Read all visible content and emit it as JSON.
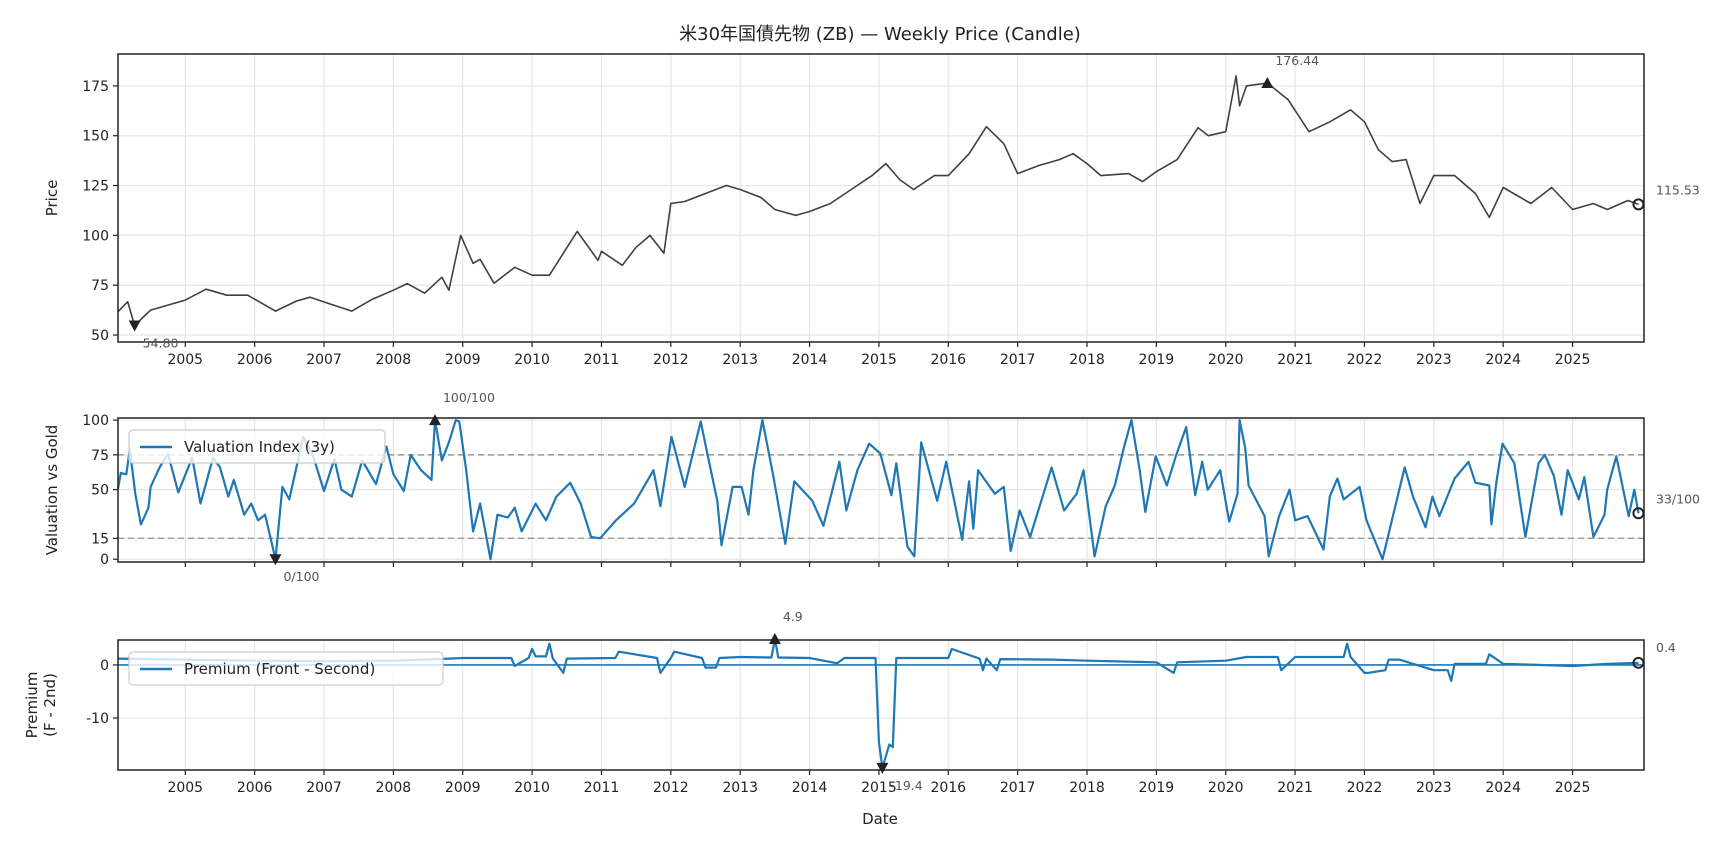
{
  "title": "米30年国債先物 (ZB) — Weekly Price (Candle)",
  "colors": {
    "price": "#404040",
    "series": "#1f77b4",
    "grid": "#e6e6e6",
    "threshold": "#999999",
    "marker": "#222222"
  },
  "chart_data": [
    {
      "type": "line",
      "style": "candle (weekly)",
      "ylabel": "Price",
      "xlim": [
        2004.03,
        2026.03
      ],
      "ylim": [
        46.5,
        191
      ],
      "yticks": [
        "50",
        "75",
        "100",
        "125",
        "150",
        "175"
      ],
      "xticks": [
        "2005",
        "2006",
        "2007",
        "2008",
        "2009",
        "2010",
        "2011",
        "2012",
        "2013",
        "2014",
        "2015",
        "2016",
        "2017",
        "2018",
        "2019",
        "2020",
        "2021",
        "2022",
        "2023",
        "2024",
        "2025"
      ],
      "grid": true,
      "x": [
        2004.03,
        2004.17,
        2004.27,
        2004.5,
        2005.0,
        2005.3,
        2005.6,
        2005.9,
        2006.3,
        2006.6,
        2006.8,
        2007.05,
        2007.4,
        2007.7,
        2008.0,
        2008.2,
        2008.45,
        2008.7,
        2008.8,
        2008.97,
        2009.15,
        2009.25,
        2009.45,
        2009.75,
        2010.0,
        2010.25,
        2010.65,
        2010.95,
        2011.0,
        2011.3,
        2011.5,
        2011.7,
        2011.9,
        2012.0,
        2012.2,
        2012.5,
        2012.8,
        2013.0,
        2013.3,
        2013.5,
        2013.8,
        2014.0,
        2014.3,
        2014.6,
        2014.9,
        2015.1,
        2015.3,
        2015.5,
        2015.8,
        2016.0,
        2016.3,
        2016.55,
        2016.8,
        2017.0,
        2017.3,
        2017.6,
        2017.8,
        2018.0,
        2018.2,
        2018.6,
        2018.8,
        2019.0,
        2019.3,
        2019.6,
        2019.75,
        2020.0,
        2020.15,
        2020.2,
        2020.3,
        2020.6,
        2020.9,
        2021.2,
        2021.5,
        2021.8,
        2022.0,
        2022.2,
        2022.4,
        2022.6,
        2022.8,
        2023.0,
        2023.3,
        2023.6,
        2023.8,
        2024.0,
        2024.4,
        2024.7,
        2025.0,
        2025.3,
        2025.5,
        2025.8,
        2025.95
      ],
      "y": [
        61.7,
        66.7,
        54.8,
        62.5,
        67.5,
        73,
        70,
        70,
        62,
        67,
        69,
        66,
        62,
        68,
        72.5,
        75.8,
        71,
        79,
        72.5,
        100,
        86,
        88,
        76,
        84,
        80,
        80,
        102,
        87.5,
        92,
        85,
        94,
        100,
        91,
        116,
        117,
        121,
        125,
        123,
        119,
        113,
        110,
        112,
        116,
        123,
        130,
        136,
        128,
        123,
        130,
        130,
        141,
        154.5,
        146,
        131,
        135,
        138,
        141,
        136,
        130,
        131,
        127,
        132,
        138,
        154,
        150,
        152,
        180,
        165,
        175,
        176.44,
        168,
        152,
        157,
        163,
        157,
        143,
        137,
        138,
        116,
        130,
        130,
        121,
        109,
        124,
        116,
        124,
        113,
        116,
        113,
        117.5,
        115.53
      ],
      "annotations": {
        "max_label": "176.44",
        "max_x": 2020.6,
        "max_y": 176.44,
        "min_label": "54.80",
        "min_x": 2004.27,
        "min_y": 54.8,
        "last_label": "115.53"
      }
    },
    {
      "type": "line",
      "ylabel": "Valuation vs Gold",
      "xlim": [
        2004.03,
        2026.03
      ],
      "ylim": [
        -2,
        101.5
      ],
      "yticks": [
        "0",
        "15",
        "50",
        "75",
        "100"
      ],
      "thresholds": [
        75,
        15
      ],
      "grid": true,
      "legend": {
        "label": "Valuation Index (3y)",
        "placement": "upper-left"
      },
      "x": [
        2004.03,
        2004.07,
        2004.15,
        2004.2,
        2004.28,
        2004.36,
        2004.47,
        2004.5,
        2004.63,
        2004.75,
        2004.9,
        2005.1,
        2005.22,
        2005.4,
        2005.5,
        2005.62,
        2005.7,
        2005.85,
        2005.95,
        2006.05,
        2006.15,
        2006.3,
        2006.4,
        2006.5,
        2006.7,
        2006.85,
        2007.0,
        2007.15,
        2007.25,
        2007.4,
        2007.55,
        2007.75,
        2007.9,
        2008.0,
        2008.15,
        2008.25,
        2008.4,
        2008.55,
        2008.6,
        2008.7,
        2008.8,
        2008.9,
        2008.95,
        2009.05,
        2009.15,
        2009.25,
        2009.4,
        2009.5,
        2009.65,
        2009.75,
        2009.85,
        2010.05,
        2010.2,
        2010.35,
        2010.55,
        2010.7,
        2010.85,
        2010.98,
        2011.21,
        2011.47,
        2011.75,
        2011.85,
        2012.01,
        2012.2,
        2012.43,
        2012.53,
        2012.67,
        2012.73,
        2012.89,
        2013.02,
        2013.12,
        2013.19,
        2013.32,
        2013.48,
        2013.65,
        2013.78,
        2014.04,
        2014.2,
        2014.43,
        2014.53,
        2014.69,
        2014.86,
        2015.02,
        2015.18,
        2015.25,
        2015.41,
        2015.51,
        2015.61,
        2015.84,
        2015.97,
        2016.2,
        2016.3,
        2016.36,
        2016.43,
        2016.67,
        2016.8,
        2016.9,
        2017.03,
        2017.18,
        2017.49,
        2017.67,
        2017.85,
        2017.95,
        2018.11,
        2018.27,
        2018.4,
        2018.53,
        2018.64,
        2018.76,
        2018.84,
        2018.99,
        2019.15,
        2019.28,
        2019.43,
        2019.56,
        2019.66,
        2019.74,
        2019.92,
        2020.05,
        2020.17,
        2020.2,
        2020.28,
        2020.33,
        2020.56,
        2020.62,
        2020.77,
        2020.92,
        2021.0,
        2021.18,
        2021.41,
        2021.5,
        2021.61,
        2021.7,
        2021.93,
        2022.03,
        2022.26,
        2022.42,
        2022.58,
        2022.7,
        2022.88,
        2022.98,
        2023.08,
        2023.3,
        2023.5,
        2023.6,
        2023.8,
        2023.83,
        2023.9,
        2023.99,
        2024.16,
        2024.32,
        2024.51,
        2024.6,
        2024.73,
        2024.84,
        2024.93,
        2025.09,
        2025.17,
        2025.3,
        2025.46,
        2025.5,
        2025.63,
        2025.81,
        2025.89,
        2025.95
      ],
      "y": [
        50.6,
        62,
        61,
        79,
        47,
        25,
        37,
        52,
        66,
        76,
        48,
        73,
        40,
        73,
        66,
        45,
        57,
        32,
        40,
        28,
        32,
        0,
        52,
        43,
        88,
        73,
        49,
        72,
        50,
        45,
        71,
        54,
        81,
        61,
        49,
        75,
        64,
        57,
        100,
        71,
        84,
        100,
        99,
        64,
        20,
        40,
        0,
        32,
        30,
        37,
        20,
        40,
        28,
        45,
        55,
        40,
        16,
        15,
        28,
        40,
        64,
        38,
        88,
        52,
        99,
        75,
        42,
        10,
        52,
        52,
        32,
        64,
        100,
        59,
        11,
        56,
        42,
        24,
        70,
        35,
        64,
        83,
        76,
        46,
        69,
        9,
        2,
        84,
        42,
        70,
        14,
        56,
        22,
        64,
        47,
        52,
        6,
        35,
        16,
        66,
        35,
        47,
        64,
        2,
        38,
        53,
        80,
        100,
        64,
        34,
        74,
        53,
        74,
        95,
        46,
        70,
        50,
        64,
        27,
        47,
        100,
        80,
        53,
        31,
        2,
        31,
        50,
        28,
        31,
        7,
        45,
        58,
        43,
        52,
        28,
        0,
        33,
        66,
        45,
        23,
        45,
        31,
        58,
        70,
        55,
        53,
        25,
        55,
        83,
        69,
        16,
        69,
        75,
        60,
        32,
        64,
        43,
        59,
        16,
        32,
        50,
        74,
        31,
        50,
        33
      ],
      "annotations": {
        "max_label": "100/100",
        "max_x": 2008.6,
        "max_y": 100,
        "min_label": "0/100",
        "min_x": 2006.3,
        "min_y": 0,
        "last_label": "33/100"
      }
    },
    {
      "type": "line",
      "ylabel": "Premium\n(F - 2nd)",
      "ylabel_lines": [
        "Premium",
        "(F - 2nd)"
      ],
      "xlabel": "Date",
      "xlim": [
        2004.03,
        2026.03
      ],
      "ylim": [
        -19.8,
        4.7
      ],
      "yticks": [
        "0",
        "-10"
      ],
      "zero_line": true,
      "grid": true,
      "legend": {
        "label": "Premium (Front - Second)",
        "placement": "upper-left"
      },
      "xticks": [
        "2005",
        "2006",
        "2007",
        "2008",
        "2009",
        "2010",
        "2011",
        "2012",
        "2013",
        "2014",
        "2015",
        "2016",
        "2017",
        "2018",
        "2019",
        "2020",
        "2021",
        "2022",
        "2023",
        "2024",
        "2025"
      ],
      "x": [
        2004.03,
        2005.0,
        2006.0,
        2007.0,
        2008.0,
        2008.8,
        2009.0,
        2009.7,
        2009.75,
        2009.95,
        2010.0,
        2010.05,
        2010.2,
        2010.25,
        2010.3,
        2010.45,
        2010.5,
        2011.2,
        2011.25,
        2011.8,
        2011.85,
        2012.0,
        2012.05,
        2012.45,
        2012.5,
        2012.65,
        2012.7,
        2013.0,
        2013.45,
        2013.5,
        2013.55,
        2014.0,
        2014.4,
        2014.5,
        2014.95,
        2015.0,
        2015.05,
        2015.15,
        2015.2,
        2015.25,
        2016.0,
        2016.05,
        2016.45,
        2016.5,
        2016.55,
        2016.7,
        2016.75,
        2017.5,
        2018.0,
        2019.0,
        2019.25,
        2019.3,
        2020.0,
        2020.3,
        2020.75,
        2020.8,
        2021.0,
        2021.7,
        2021.75,
        2021.8,
        2022.0,
        2022.05,
        2022.3,
        2022.35,
        2022.5,
        2023.0,
        2023.2,
        2023.25,
        2023.3,
        2023.75,
        2023.8,
        2024.0,
        2024.5,
        2025.0,
        2025.5,
        2025.95
      ],
      "y": [
        1.2,
        1.0,
        0.8,
        0.7,
        0.8,
        1.2,
        1.3,
        1.3,
        -0.2,
        1.3,
        3.0,
        1.6,
        1.6,
        4.0,
        1.2,
        -1.5,
        1.2,
        1.3,
        2.5,
        1.3,
        -1.5,
        1.3,
        2.5,
        1.3,
        -0.5,
        -0.5,
        1.3,
        1.5,
        1.4,
        4.9,
        1.4,
        1.3,
        0.3,
        1.3,
        1.3,
        -14.5,
        -19.4,
        -15,
        -15.5,
        1.3,
        1.3,
        3.0,
        1.2,
        -1.0,
        1.2,
        -1.0,
        1.1,
        1.0,
        0.8,
        0.5,
        -1.5,
        0.5,
        0.8,
        1.5,
        1.5,
        -1.0,
        1.5,
        1.5,
        4.0,
        1.5,
        -1.5,
        -1.5,
        -1.0,
        1.0,
        1.0,
        -1.0,
        -1.0,
        -3.0,
        0.2,
        0.2,
        2.0,
        0.2,
        0.0,
        -0.2,
        0.2,
        0.4
      ],
      "annotations": {
        "max_label": "4.9",
        "max_x": 2013.5,
        "max_y": 4.9,
        "min_label": "-19.4",
        "min_x": 2015.05,
        "min_y": -19.4,
        "last_label": "0.4"
      }
    }
  ]
}
